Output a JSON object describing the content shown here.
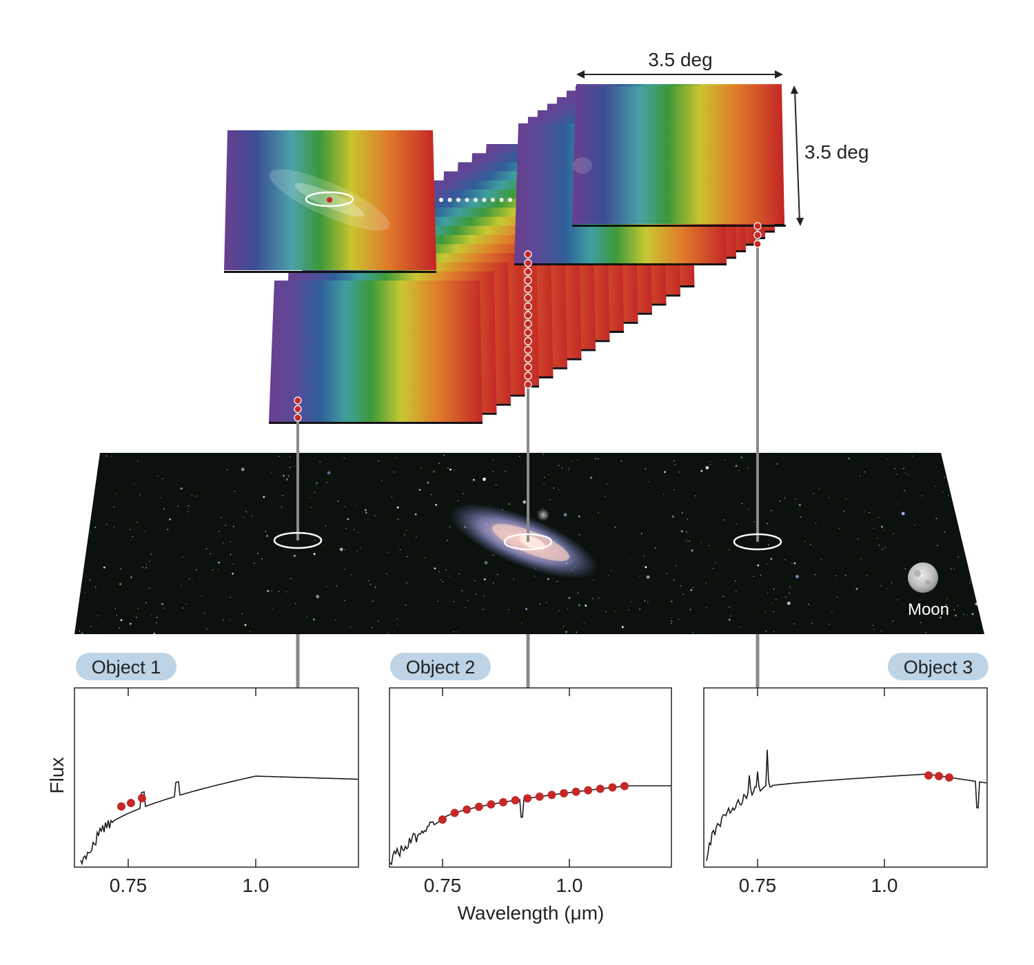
{
  "dimensions": {
    "width_label": "3.5 deg",
    "height_label": "3.5 deg"
  },
  "sky": {
    "moon_label": "Moon"
  },
  "objects": [
    {
      "name": "Object 1",
      "tick_labels": [
        "0.75",
        "1.0"
      ]
    },
    {
      "name": "Object 2",
      "tick_labels": [
        "0.75",
        "1.0"
      ]
    },
    {
      "name": "Object 3",
      "tick_labels": [
        "0.75",
        "1.0"
      ]
    }
  ],
  "axes": {
    "y_label": "Flux",
    "x_label": "Wavelength (μm)"
  },
  "colors": {
    "marker": "#c62828",
    "pill": "#bcd4e6",
    "sky_bg": "#0b120d",
    "rod": "#8a8a8a"
  }
}
